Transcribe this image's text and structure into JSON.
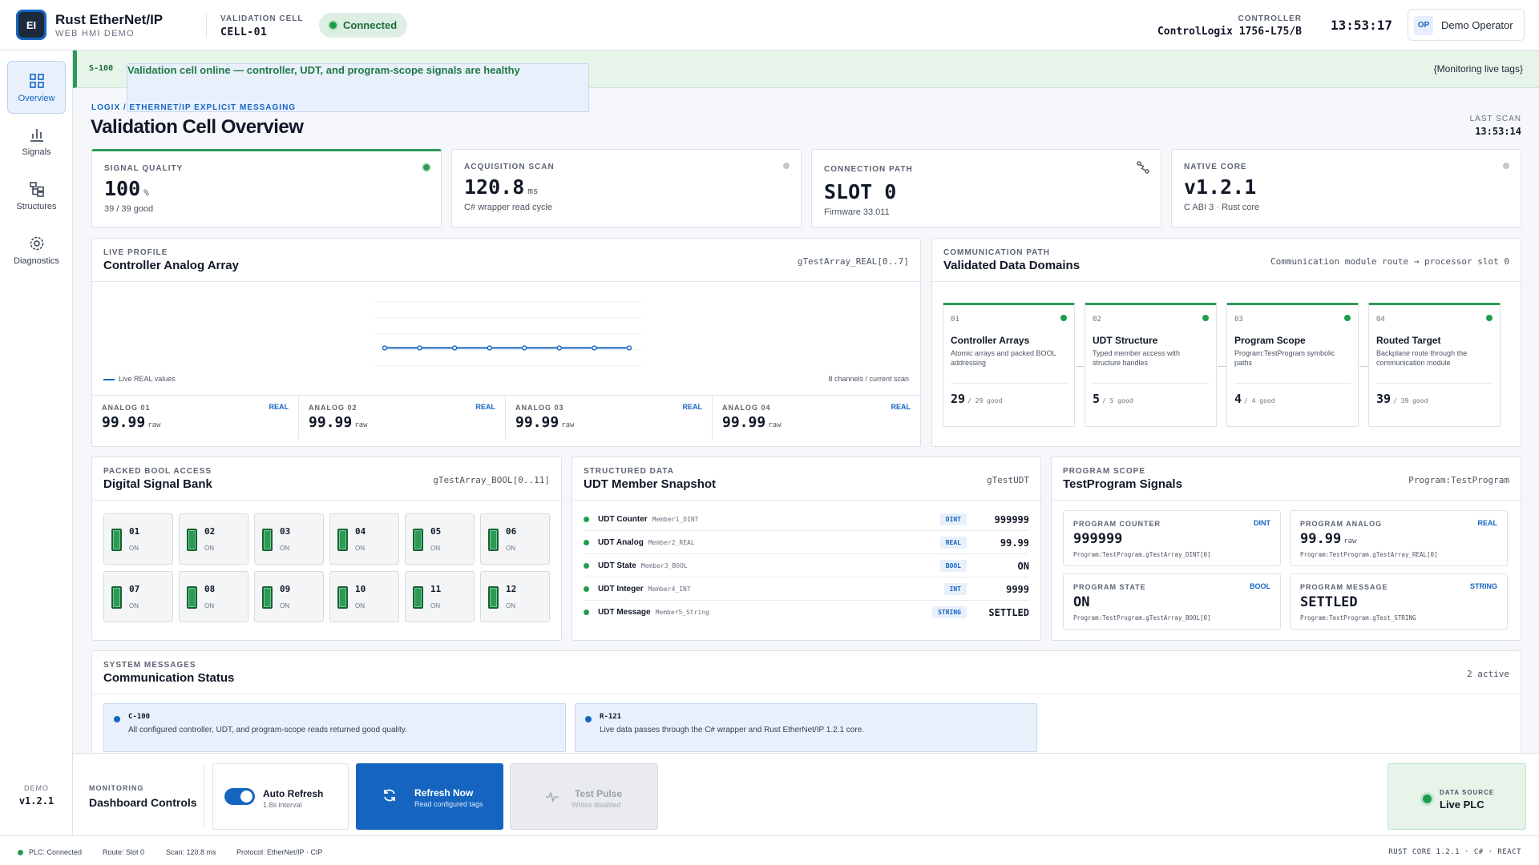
{
  "header": {
    "logo_text": "EI",
    "app_name": "Rust EtherNet/IP",
    "app_sub": "WEB HMI DEMO",
    "cell_caption": "VALIDATION CELL",
    "cell_value": "CELL-01",
    "connection": "Connected",
    "controller_caption": "CONTROLLER",
    "controller_value": "ControlLogix 1756-L75/B",
    "clock": "13:53:17",
    "user_initials": "OP",
    "user_name": "Demo Operator"
  },
  "sidebar": {
    "items": [
      {
        "label": "Overview",
        "icon": "grid-icon"
      },
      {
        "label": "Signals",
        "icon": "bar-chart-icon"
      },
      {
        "label": "Structures",
        "icon": "hierarchy-icon"
      },
      {
        "label": "Diagnostics",
        "icon": "gear-icon"
      }
    ],
    "footer_caption": "DEMO",
    "footer_version": "v1.2.1"
  },
  "banner": {
    "code": "S-100",
    "message": "Validation cell online — controller, UDT, and program-scope signals are healthy",
    "right": "{Monitoring live tags}"
  },
  "page": {
    "crumb": "LOGIX / ETHERNET/IP EXPLICIT MESSAGING",
    "title": "Validation Cell Overview",
    "last_scan_caption": "LAST SCAN",
    "last_scan_value": "13:53:14"
  },
  "kpis": [
    {
      "caption": "SIGNAL QUALITY",
      "value": "100",
      "unit": "%",
      "sub": "39 / 39 good",
      "indicator": "#2e9a55"
    },
    {
      "caption": "ACQUISITION SCAN",
      "value": "120.8",
      "unit": "ms",
      "sub": "C# wrapper read cycle",
      "indicator": "#c3c8cf"
    },
    {
      "caption": "CONNECTION PATH",
      "value": "SLOT 0",
      "unit": "",
      "sub": "Firmware 33.011",
      "icon": "route-icon"
    },
    {
      "caption": "NATIVE CORE",
      "value": "v1.2.1",
      "unit": "",
      "sub": "C ABI 3 · Rust core",
      "indicator": "#c3c8cf"
    }
  ],
  "live_profile": {
    "caption": "LIVE PROFILE",
    "title": "Controller Analog Array",
    "tag": "gTestArray_REAL[0..7]",
    "legend": "Live REAL values",
    "channels_note": "8 channels / current scan",
    "analogs": [
      {
        "label": "ANALOG 01",
        "type": "REAL",
        "value": "99.99",
        "unit": "raw"
      },
      {
        "label": "ANALOG 02",
        "type": "REAL",
        "value": "99.99",
        "unit": "raw"
      },
      {
        "label": "ANALOG 03",
        "type": "REAL",
        "value": "99.99",
        "unit": "raw"
      },
      {
        "label": "ANALOG 04",
        "type": "REAL",
        "value": "99.99",
        "unit": "raw"
      }
    ]
  },
  "chart_data": {
    "type": "line",
    "x": [
      0,
      1,
      2,
      3,
      4,
      5,
      6,
      7
    ],
    "series": [
      {
        "name": "Live REAL values",
        "values": [
          99.99,
          99.99,
          99.99,
          99.99,
          99.99,
          99.99,
          99.99,
          99.99
        ]
      }
    ],
    "title": "Controller Analog Array",
    "xlabel": "",
    "ylabel": "",
    "grid": true,
    "legend": "bottom-left",
    "color": "#1565c0"
  },
  "domains": {
    "caption": "COMMUNICATION PATH",
    "title": "Validated Data Domains",
    "tag": "Communication module route → processor slot 0",
    "items": [
      {
        "num": "01",
        "title": "Controller Arrays",
        "desc": "Atomic arrays and packed BOOL addressing",
        "count": "29",
        "of": "/ 29 good"
      },
      {
        "num": "02",
        "title": "UDT Structure",
        "desc": "Typed member access with structure handles",
        "count": "5",
        "of": "/ 5 good"
      },
      {
        "num": "03",
        "title": "Program Scope",
        "desc": "Program:TestProgram symbolic paths",
        "count": "4",
        "of": "/ 4 good"
      },
      {
        "num": "04",
        "title": "Routed Target",
        "desc": "Backplane route through the communication module",
        "count": "39",
        "of": "/ 39 good"
      }
    ]
  },
  "bools": {
    "caption": "PACKED BOOL ACCESS",
    "title": "Digital Signal Bank",
    "tag": "gTestArray_BOOL[0..11]",
    "items": [
      {
        "n": "01",
        "s": "ON"
      },
      {
        "n": "02",
        "s": "ON"
      },
      {
        "n": "03",
        "s": "ON"
      },
      {
        "n": "04",
        "s": "ON"
      },
      {
        "n": "05",
        "s": "ON"
      },
      {
        "n": "06",
        "s": "ON"
      },
      {
        "n": "07",
        "s": "ON"
      },
      {
        "n": "08",
        "s": "ON"
      },
      {
        "n": "09",
        "s": "ON"
      },
      {
        "n": "10",
        "s": "ON"
      },
      {
        "n": "11",
        "s": "ON"
      },
      {
        "n": "12",
        "s": "ON"
      }
    ]
  },
  "udt": {
    "caption": "STRUCTURED DATA",
    "title": "UDT Member Snapshot",
    "tag": "gTestUDT",
    "rows": [
      {
        "label": "UDT Counter",
        "member": "Member1_DINT",
        "type": "DINT",
        "value": "999999"
      },
      {
        "label": "UDT Analog",
        "member": "Member2_REAL",
        "type": "REAL",
        "value": "99.99"
      },
      {
        "label": "UDT State",
        "member": "Member3_BOOL",
        "type": "BOOL",
        "value": "ON"
      },
      {
        "label": "UDT Integer",
        "member": "Member4_INT",
        "type": "INT",
        "value": "9999"
      },
      {
        "label": "UDT Message",
        "member": "Member5_String",
        "type": "STRING",
        "value": "SETTLED"
      }
    ]
  },
  "program": {
    "caption": "PROGRAM SCOPE",
    "title": "TestProgram Signals",
    "tag": "Program:TestProgram",
    "items": [
      {
        "label": "PROGRAM COUNTER",
        "type": "DINT",
        "value": "999999",
        "unit": "",
        "path": "Program:TestProgram.gTestArray_DINT[0]"
      },
      {
        "label": "PROGRAM ANALOG",
        "type": "REAL",
        "value": "99.99",
        "unit": "raw",
        "path": "Program:TestProgram.gTestArray_REAL[0]"
      },
      {
        "label": "PROGRAM STATE",
        "type": "BOOL",
        "value": "ON",
        "unit": "",
        "path": "Program:TestProgram.gTestArray_BOOL[0]"
      },
      {
        "label": "PROGRAM MESSAGE",
        "type": "STRING",
        "value": "SETTLED",
        "unit": "",
        "path": "Program:TestProgram.gTest_STRING"
      }
    ]
  },
  "messages": {
    "caption": "SYSTEM MESSAGES",
    "title": "Communication Status",
    "count": "2 active",
    "items": [
      {
        "code": "C-100",
        "text": "All configured controller, UDT, and program-scope reads returned good quality."
      },
      {
        "code": "R-121",
        "text": "Live data passes through the C# wrapper and Rust EtherNet/IP 1.2.1 core."
      }
    ]
  },
  "controls": {
    "caption": "MONITORING",
    "title": "Dashboard Controls",
    "auto_refresh": "Auto Refresh",
    "auto_refresh_sub": "1.8s interval",
    "refresh": "Refresh Now",
    "refresh_sub": "Read configured tags",
    "pulse": "Test Pulse",
    "pulse_sub": "Writes disabled",
    "source_caption": "DATA SOURCE",
    "source_value": "Live PLC"
  },
  "status": {
    "plc": "PLC: Connected",
    "route": "Route: Slot 0",
    "scan": "Scan: 120.8 ms",
    "protocol": "Protocol: EtherNet/IP · CIP",
    "right": "RUST CORE 1.2.1 · C# · REACT"
  }
}
